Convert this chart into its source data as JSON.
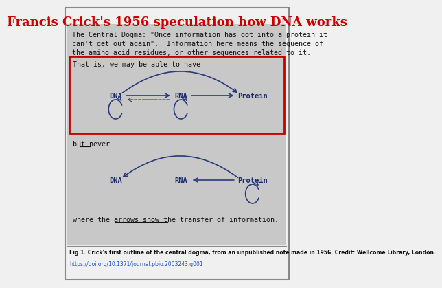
{
  "title": "Francis Crick's 1956 speculation how DNA works",
  "title_color": "#cc0000",
  "title_fontsize": 13,
  "bg_color": "#f0f0f0",
  "panel_bg": "#c8c8c8",
  "body_text_lines": [
    "The Central Dogma: \"Once information has got into a protein it",
    "can't get out again\".  Information here means the sequence of",
    "the amino acid residues, or other sequences related to it."
  ],
  "caption": "Fig 1. Crick's first outline of the central dogma, from an unpublished note made in 1956. Credit: Wellcome Library, London.",
  "doi": "https://doi.org/10.1371/journal.pbio.2003243.g001",
  "arrow_color": "#2a3a7a",
  "node_color": "#1a2a6a",
  "red_box_color": "#cc0000",
  "outer_border_color": "#888888",
  "text_color": "#111111"
}
